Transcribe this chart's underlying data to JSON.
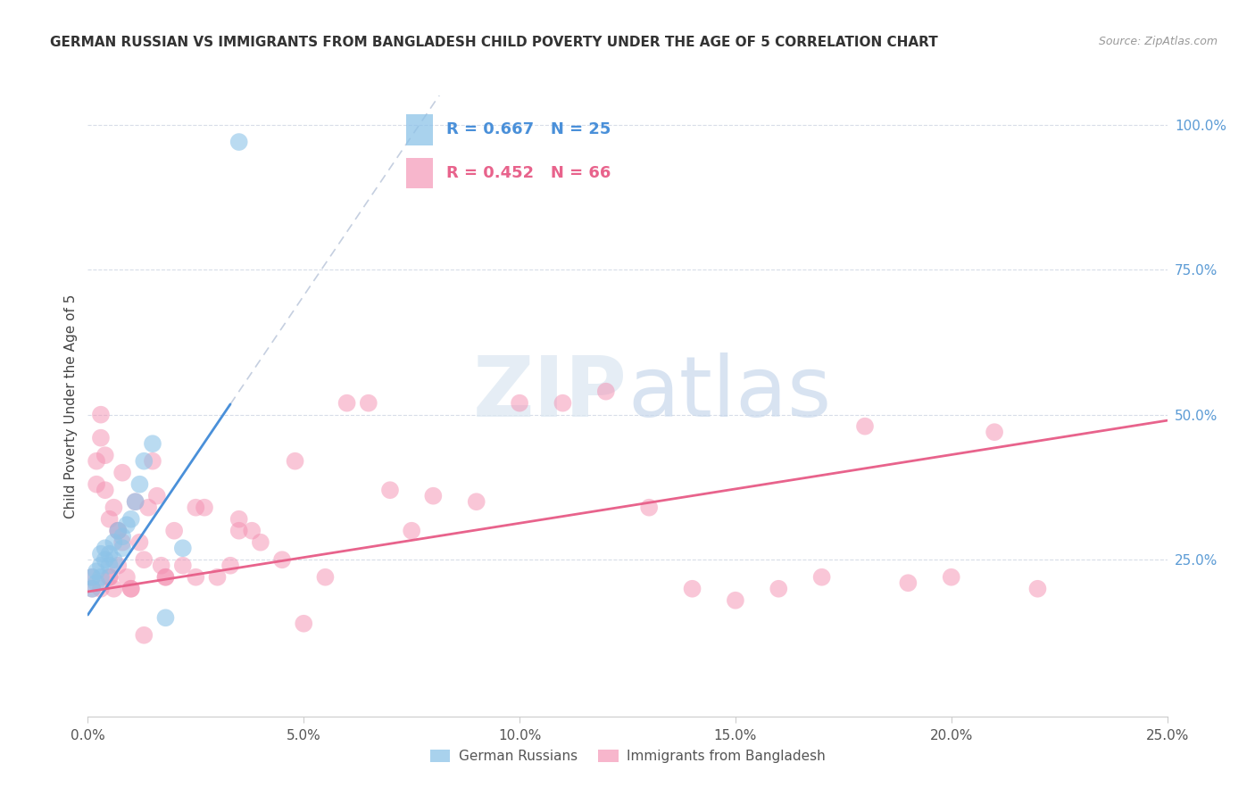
{
  "title": "GERMAN RUSSIAN VS IMMIGRANTS FROM BANGLADESH CHILD POVERTY UNDER THE AGE OF 5 CORRELATION CHART",
  "source": "Source: ZipAtlas.com",
  "ylabel": "Child Poverty Under the Age of 5",
  "legend1_label": "German Russians",
  "legend2_label": "Immigrants from Bangladesh",
  "R1": 0.667,
  "N1": 25,
  "R2": 0.452,
  "N2": 66,
  "xlim": [
    0.0,
    0.25
  ],
  "ylim": [
    -0.02,
    1.05
  ],
  "xticks": [
    0.0,
    0.05,
    0.1,
    0.15,
    0.2,
    0.25
  ],
  "yticks": [
    0.25,
    0.5,
    0.75,
    1.0
  ],
  "color_blue": "#8dc3e8",
  "color_pink": "#f48fb1",
  "color_blue_line": "#4a90d9",
  "color_pink_line": "#e8638c",
  "color_diag": "#c5cfe0",
  "background": "#ffffff",
  "watermark_zip": "ZIP",
  "watermark_atlas": "atlas",
  "blue_x": [
    0.001,
    0.001,
    0.002,
    0.002,
    0.003,
    0.003,
    0.003,
    0.004,
    0.004,
    0.005,
    0.005,
    0.006,
    0.006,
    0.007,
    0.008,
    0.008,
    0.009,
    0.01,
    0.011,
    0.012,
    0.013,
    0.015,
    0.018,
    0.022,
    0.035
  ],
  "blue_y": [
    0.2,
    0.22,
    0.21,
    0.23,
    0.22,
    0.24,
    0.26,
    0.25,
    0.27,
    0.24,
    0.26,
    0.25,
    0.28,
    0.3,
    0.27,
    0.29,
    0.31,
    0.32,
    0.35,
    0.38,
    0.42,
    0.45,
    0.15,
    0.27,
    0.97
  ],
  "pink_x": [
    0.001,
    0.001,
    0.002,
    0.002,
    0.003,
    0.003,
    0.004,
    0.004,
    0.005,
    0.005,
    0.006,
    0.006,
    0.007,
    0.007,
    0.008,
    0.008,
    0.009,
    0.01,
    0.011,
    0.012,
    0.013,
    0.014,
    0.015,
    0.016,
    0.017,
    0.018,
    0.02,
    0.022,
    0.025,
    0.027,
    0.03,
    0.033,
    0.035,
    0.038,
    0.04,
    0.045,
    0.048,
    0.055,
    0.06,
    0.065,
    0.07,
    0.075,
    0.08,
    0.09,
    0.1,
    0.11,
    0.12,
    0.13,
    0.14,
    0.15,
    0.16,
    0.17,
    0.18,
    0.19,
    0.2,
    0.21,
    0.22,
    0.003,
    0.005,
    0.007,
    0.01,
    0.013,
    0.018,
    0.025,
    0.035,
    0.05
  ],
  "pink_y": [
    0.2,
    0.22,
    0.42,
    0.38,
    0.46,
    0.5,
    0.43,
    0.37,
    0.22,
    0.32,
    0.2,
    0.34,
    0.24,
    0.3,
    0.28,
    0.4,
    0.22,
    0.2,
    0.35,
    0.28,
    0.25,
    0.34,
    0.42,
    0.36,
    0.24,
    0.22,
    0.3,
    0.24,
    0.22,
    0.34,
    0.22,
    0.24,
    0.32,
    0.3,
    0.28,
    0.25,
    0.42,
    0.22,
    0.52,
    0.52,
    0.37,
    0.3,
    0.36,
    0.35,
    0.52,
    0.52,
    0.54,
    0.34,
    0.2,
    0.18,
    0.2,
    0.22,
    0.48,
    0.21,
    0.22,
    0.47,
    0.2,
    0.2,
    0.22,
    0.3,
    0.2,
    0.12,
    0.22,
    0.34,
    0.3,
    0.14
  ],
  "blue_line_x0": 0.0,
  "blue_line_y0": 0.155,
  "blue_line_x1": 0.04,
  "blue_line_y1": 0.595,
  "blue_line_solid_end": 0.033,
  "pink_line_x0": 0.0,
  "pink_line_y0": 0.195,
  "pink_line_x1": 0.25,
  "pink_line_y1": 0.49
}
